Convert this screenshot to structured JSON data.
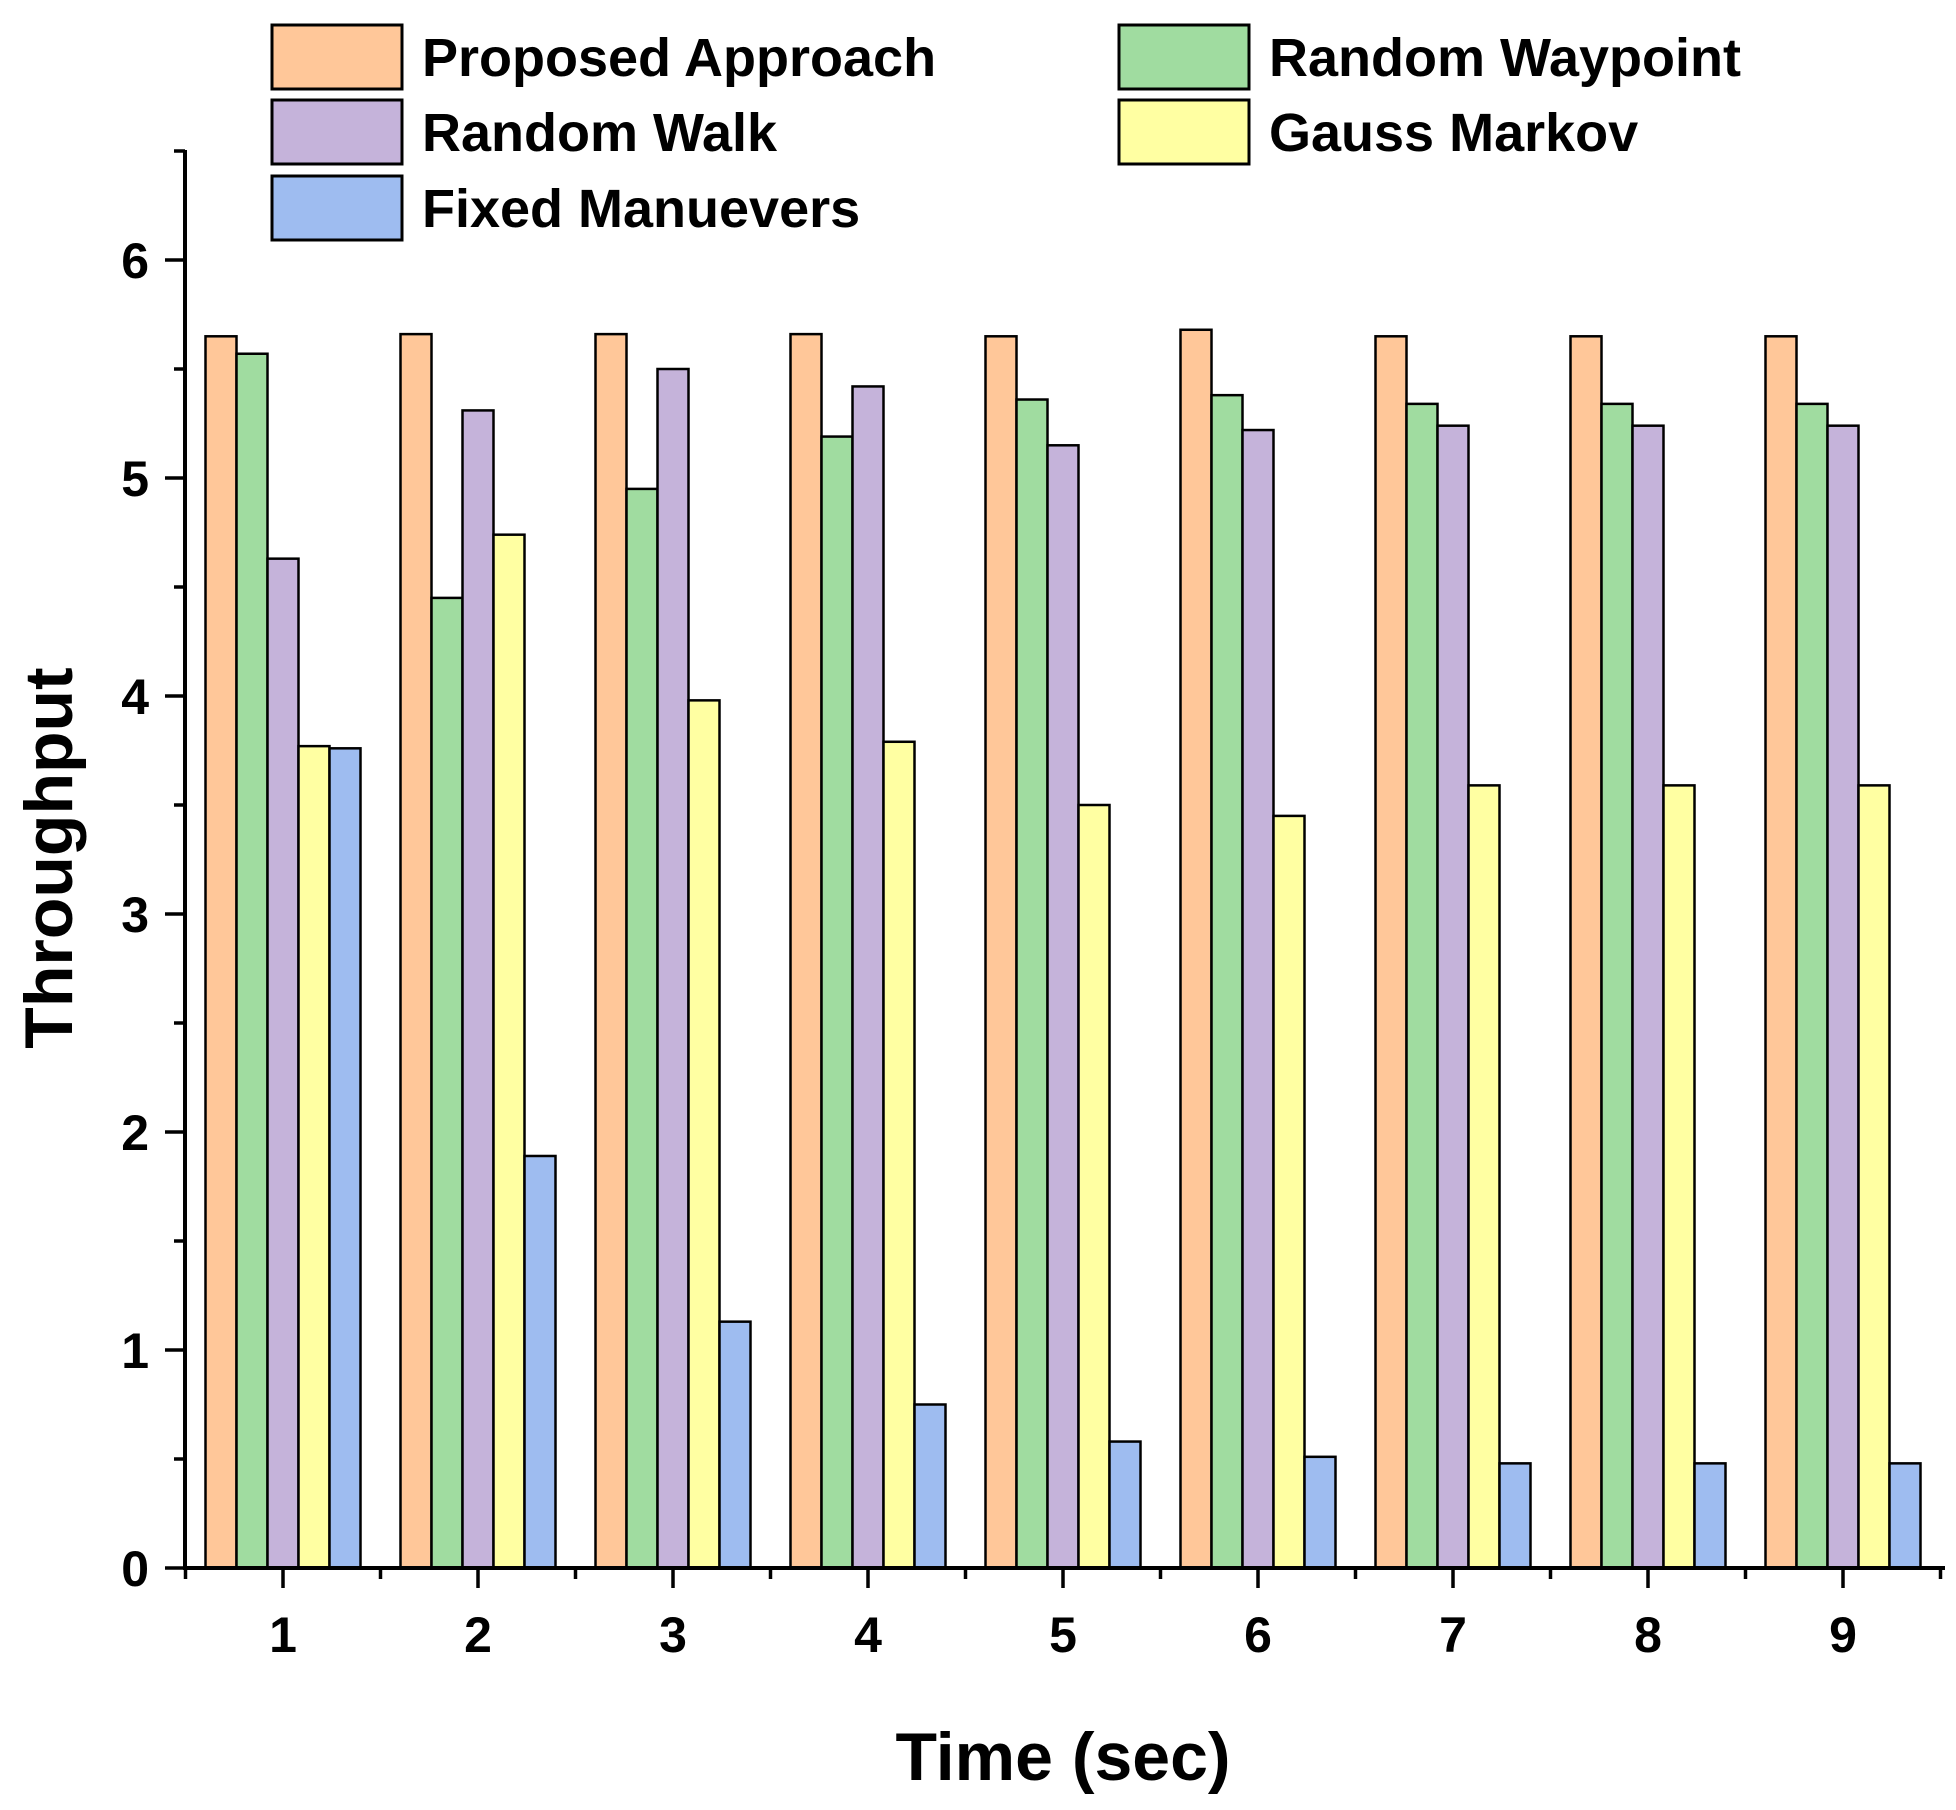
{
  "chart_data": {
    "type": "bar",
    "title": "",
    "xlabel": "Time (sec)",
    "ylabel": "Throughput",
    "categories": [
      "1",
      "2",
      "3",
      "4",
      "5",
      "6",
      "7",
      "8",
      "9"
    ],
    "ylim": [
      0,
      6.5
    ],
    "yticks": [
      0,
      1,
      2,
      3,
      4,
      5,
      6
    ],
    "grid": false,
    "legend_position": "top",
    "series": [
      {
        "name": "Proposed Approach",
        "color": "#FFC799",
        "values": [
          5.65,
          5.66,
          5.66,
          5.66,
          5.65,
          5.68,
          5.65,
          5.65,
          5.65
        ]
      },
      {
        "name": "Random Waypoint",
        "color": "#A0DCA0",
        "values": [
          5.57,
          4.45,
          4.95,
          5.19,
          5.36,
          5.38,
          5.34,
          5.34,
          5.34
        ]
      },
      {
        "name": "Random Walk",
        "color": "#C5B3DA",
        "values": [
          4.63,
          5.31,
          5.5,
          5.42,
          5.15,
          5.22,
          5.24,
          5.24,
          5.24
        ]
      },
      {
        "name": "Gauss Markov",
        "color": "#FFFFA2",
        "values": [
          3.77,
          4.74,
          3.98,
          3.79,
          3.5,
          3.45,
          3.59,
          3.59,
          3.59
        ]
      },
      {
        "name": "Fixed Manuevers",
        "color": "#9EBCF0",
        "values": [
          3.76,
          1.89,
          1.13,
          0.75,
          0.58,
          0.51,
          0.48,
          0.48,
          0.48
        ]
      }
    ]
  }
}
